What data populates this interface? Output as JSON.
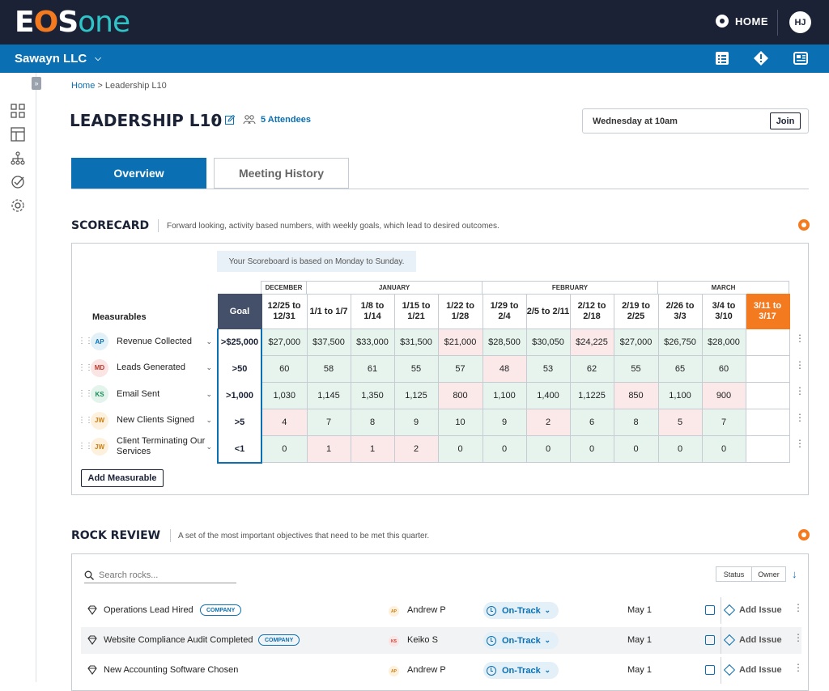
{
  "app": {
    "logo_parts": [
      "E",
      "O",
      "S",
      "one"
    ],
    "home_label": "HOME",
    "user_initials": "HJ"
  },
  "org": {
    "name": "Sawayn LLC"
  },
  "breadcrumb": {
    "home": "Home",
    "sep": " > ",
    "current": "Leadership L10"
  },
  "meeting": {
    "title": "LEADERSHIP L10",
    "attendees": "5 Attendees",
    "schedule": "Wednesday at 10am",
    "join_label": "Join"
  },
  "tabs": [
    {
      "label": "Overview",
      "active": true
    },
    {
      "label": "Meeting History",
      "active": false
    }
  ],
  "scorecard": {
    "heading": "SCORECARD",
    "description": "Forward looking, activity based numbers, with weekly goals, which lead to desired outcomes.",
    "note": "Your Scoreboard is based on Monday to Sunday.",
    "measurables_header": "Measurables",
    "goal_header": "Goal",
    "months": [
      "DECEMBER",
      "JANUARY",
      "FEBRUARY",
      "MARCH"
    ],
    "weeks": [
      "12/25 to 12/31",
      "1/1 to 1/7",
      "1/8 to 1/14",
      "1/15 to 1/21",
      "1/22 to 1/28",
      "1/29 to 2/4",
      "2/5 to 2/11",
      "2/12 to 2/18",
      "2/19 to 2/25",
      "2/26 to 3/3",
      "3/4 to 3/10",
      "3/11 to 3/17"
    ],
    "rows": [
      {
        "initials": "AP",
        "name": "Revenue Collected",
        "goal": ">$25,000",
        "values": [
          "$27,000",
          "$37,500",
          "$33,000",
          "$31,500",
          "$21,000",
          "$28,500",
          "$30,050",
          "$24,225",
          "$27,000",
          "$26,750",
          "$28,000",
          ""
        ],
        "status": [
          "g",
          "g",
          "g",
          "g",
          "r",
          "g",
          "g",
          "r",
          "g",
          "g",
          "g",
          "e"
        ]
      },
      {
        "initials": "MD",
        "name": "Leads Generated",
        "goal": ">50",
        "values": [
          "60",
          "58",
          "61",
          "55",
          "57",
          "48",
          "53",
          "62",
          "55",
          "65",
          "60",
          ""
        ],
        "status": [
          "g",
          "g",
          "g",
          "g",
          "g",
          "r",
          "g",
          "g",
          "g",
          "g",
          "g",
          "e"
        ]
      },
      {
        "initials": "KS",
        "name": "Email Sent",
        "goal": ">1,000",
        "values": [
          "1,030",
          "1,145",
          "1,350",
          "1,125",
          "800",
          "1,100",
          "1,400",
          "1,1225",
          "850",
          "1,100",
          "900",
          ""
        ],
        "status": [
          "g",
          "g",
          "g",
          "g",
          "r",
          "g",
          "g",
          "g",
          "r",
          "g",
          "r",
          "e"
        ]
      },
      {
        "initials": "JW",
        "name": "New Clients Signed",
        "goal": ">5",
        "values": [
          "4",
          "7",
          "8",
          "9",
          "10",
          "9",
          "2",
          "6",
          "8",
          "5",
          "7",
          ""
        ],
        "status": [
          "r",
          "g",
          "g",
          "g",
          "g",
          "g",
          "r",
          "g",
          "g",
          "r",
          "g",
          "e"
        ]
      },
      {
        "initials": "JW",
        "name": "Client Terminating Our Services",
        "goal": "<1",
        "values": [
          "0",
          "1",
          "1",
          "2",
          "0",
          "0",
          "0",
          "0",
          "0",
          "0",
          "0",
          ""
        ],
        "status": [
          "g",
          "r",
          "r",
          "r",
          "g",
          "g",
          "g",
          "g",
          "g",
          "g",
          "g",
          "e"
        ]
      }
    ],
    "add_label": "Add Measurable"
  },
  "rocks": {
    "heading": "ROCK REVIEW",
    "description": "A set of the most important objectives that need to be met this quarter.",
    "search_placeholder": "Search rocks...",
    "filters": [
      "Status",
      "Owner"
    ],
    "items": [
      {
        "name": "Operations Lead Hired",
        "badge": "COMPANY",
        "owner_initials": "AP",
        "owner": "Andrew P",
        "status": "On-Track",
        "due": "May 1",
        "action": "Add Issue"
      },
      {
        "name": "Website Compliance Audit Completed",
        "badge": "COMPANY",
        "owner_initials": "KS",
        "owner": "Keiko S",
        "status": "On-Track",
        "due": "May 1",
        "action": "Add Issue"
      },
      {
        "name": "New Accounting Software Chosen",
        "badge": "",
        "owner_initials": "AP",
        "owner": "Andrew P",
        "status": "On-Track",
        "due": "May 1",
        "action": "Add Issue"
      }
    ]
  },
  "colors": {
    "navy": "#1b2236",
    "blue": "#0a70b3",
    "orange": "#f47a20",
    "teal": "#2fc4c8",
    "green_cell": "#e7f4ee",
    "red_cell": "#fbe9e9"
  }
}
